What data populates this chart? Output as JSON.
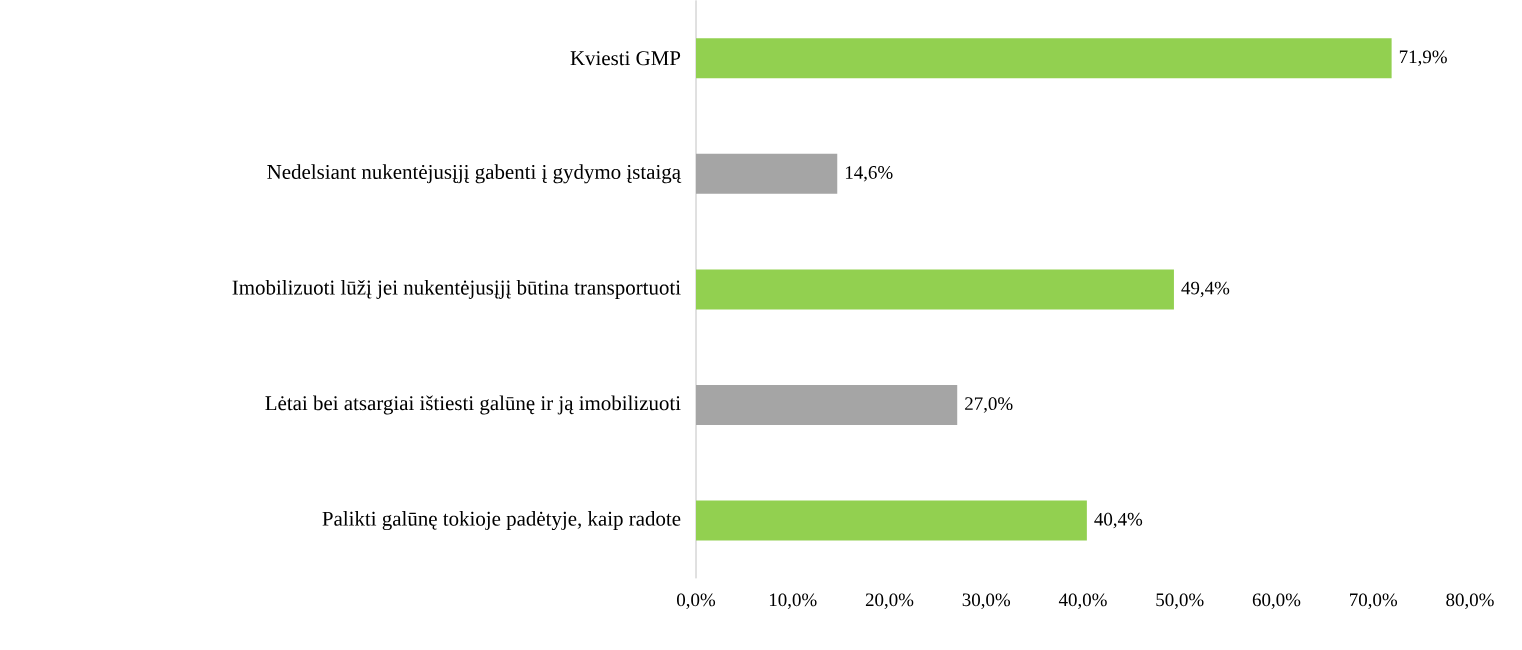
{
  "chart_data": {
    "type": "bar",
    "orientation": "horizontal",
    "categories": [
      "Kviesti GMP",
      "Nedelsiant nukentėjusįjį gabenti į gydymo įstaigą",
      "Imobilizuoti lūžį jei nukentėjusįjį būtina transportuoti",
      "Lėtai bei atsargiai ištiesti galūnę ir ją imobilizuoti",
      "Palikti galūnę tokioje padėtyje, kaip radote"
    ],
    "values": [
      71.9,
      14.6,
      49.4,
      27.0,
      40.4
    ],
    "colors": [
      "#92d050",
      "#a5a5a5",
      "#92d050",
      "#a5a5a5",
      "#92d050"
    ],
    "value_labels": [
      "71,9%",
      "14,6%",
      "49,4%",
      "27,0%",
      "40,4%"
    ],
    "xlim": [
      0,
      80
    ],
    "xticks": [
      {
        "value": 0,
        "label": "0,0%"
      },
      {
        "value": 10,
        "label": "10,0%"
      },
      {
        "value": 20,
        "label": "20,0%"
      },
      {
        "value": 30,
        "label": "30,0%"
      },
      {
        "value": 40,
        "label": "40,0%"
      },
      {
        "value": 50,
        "label": "50,0%"
      },
      {
        "value": 60,
        "label": "60,0%"
      },
      {
        "value": 70,
        "label": "70,0%"
      },
      {
        "value": 80,
        "label": "80,0%"
      }
    ],
    "tick_labels": true
  }
}
